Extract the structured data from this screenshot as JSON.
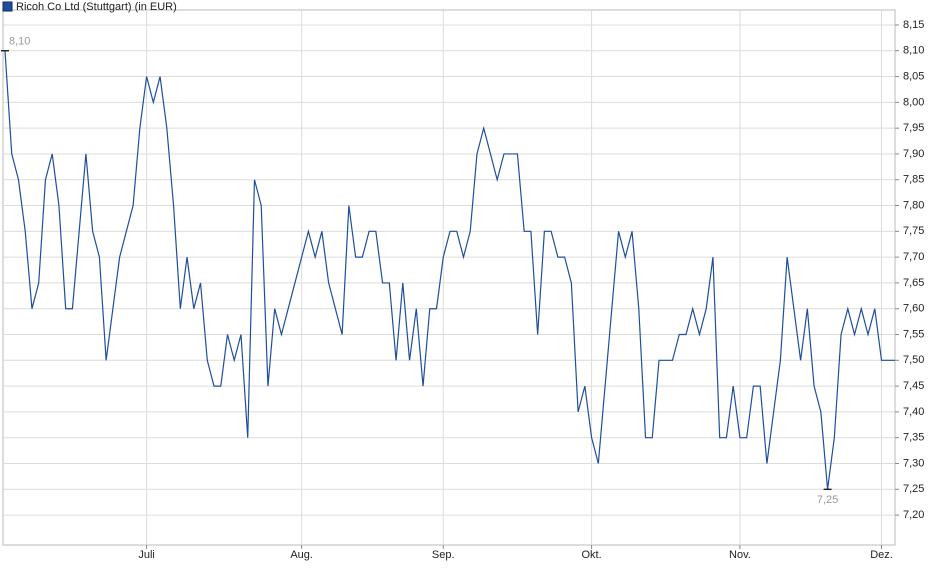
{
  "chart_data": {
    "type": "line",
    "series": [
      {
        "name": "Ricoh Co Ltd (Stuttgart) (in EUR)",
        "color": "#1f4e9c",
        "values": [
          8.1,
          7.9,
          7.85,
          7.75,
          7.6,
          7.65,
          7.85,
          7.9,
          7.8,
          7.6,
          7.6,
          7.75,
          7.9,
          7.75,
          7.7,
          7.5,
          7.6,
          7.7,
          7.75,
          7.8,
          7.95,
          8.05,
          8.0,
          8.05,
          7.95,
          7.8,
          7.6,
          7.7,
          7.6,
          7.65,
          7.5,
          7.45,
          7.45,
          7.55,
          7.5,
          7.55,
          7.35,
          7.85,
          7.8,
          7.45,
          7.6,
          7.55,
          7.6,
          7.65,
          7.7,
          7.75,
          7.7,
          7.75,
          7.65,
          7.6,
          7.55,
          7.8,
          7.7,
          7.7,
          7.75,
          7.75,
          7.65,
          7.65,
          7.5,
          7.65,
          7.5,
          7.6,
          7.45,
          7.6,
          7.6,
          7.7,
          7.75,
          7.75,
          7.7,
          7.75,
          7.9,
          7.95,
          7.9,
          7.85,
          7.9,
          7.9,
          7.9,
          7.75,
          7.75,
          7.55,
          7.75,
          7.75,
          7.7,
          7.7,
          7.65,
          7.4,
          7.45,
          7.35,
          7.3,
          7.45,
          7.6,
          7.75,
          7.7,
          7.75,
          7.6,
          7.35,
          7.35,
          7.5,
          7.5,
          7.5,
          7.55,
          7.55,
          7.6,
          7.55,
          7.6,
          7.7,
          7.35,
          7.35,
          7.45,
          7.35,
          7.35,
          7.45,
          7.45,
          7.3,
          7.4,
          7.5,
          7.7,
          7.6,
          7.5,
          7.6,
          7.45,
          7.4,
          7.25,
          7.35,
          7.55,
          7.6,
          7.55,
          7.6,
          7.55,
          7.6,
          7.5,
          7.5,
          7.5
        ]
      }
    ],
    "xlim": [
      0,
      132
    ],
    "xticks": [
      {
        "value": 21,
        "label": "Juli"
      },
      {
        "value": 44,
        "label": "Aug."
      },
      {
        "value": 65,
        "label": "Sep."
      },
      {
        "value": 87,
        "label": "Okt."
      },
      {
        "value": 109,
        "label": "Nov."
      },
      {
        "value": 130,
        "label": "Dez."
      }
    ],
    "ylim": [
      7.142,
      8.179
    ],
    "yticks": [
      {
        "value": 7.2,
        "label": "7,20"
      },
      {
        "value": 7.25,
        "label": "7,25"
      },
      {
        "value": 7.3,
        "label": "7,30"
      },
      {
        "value": 7.35,
        "label": "7,35"
      },
      {
        "value": 7.4,
        "label": "7,40"
      },
      {
        "value": 7.45,
        "label": "7,45"
      },
      {
        "value": 7.5,
        "label": "7,50"
      },
      {
        "value": 7.55,
        "label": "7,55"
      },
      {
        "value": 7.6,
        "label": "7,60"
      },
      {
        "value": 7.65,
        "label": "7,65"
      },
      {
        "value": 7.7,
        "label": "7,70"
      },
      {
        "value": 7.75,
        "label": "7,75"
      },
      {
        "value": 7.8,
        "label": "7,80"
      },
      {
        "value": 7.85,
        "label": "7,85"
      },
      {
        "value": 7.9,
        "label": "7,90"
      },
      {
        "value": 7.95,
        "label": "7,95"
      },
      {
        "value": 8.0,
        "label": "8,00"
      },
      {
        "value": 8.05,
        "label": "8,05"
      },
      {
        "value": 8.1,
        "label": "8,10"
      },
      {
        "value": 8.15,
        "label": "8,15"
      }
    ],
    "grid": true,
    "annotations": [
      {
        "x": 0,
        "y": 8.1,
        "label": "8,10"
      },
      {
        "x": 122,
        "y": 7.25,
        "label": "7,25"
      }
    ]
  }
}
